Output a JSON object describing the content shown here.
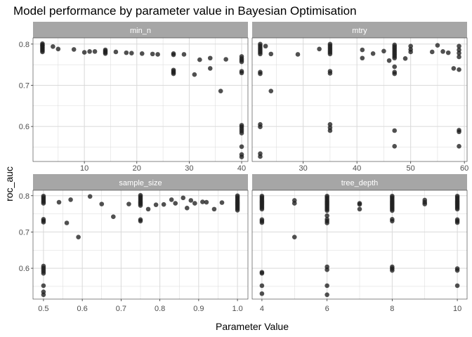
{
  "chart_data": {
    "type": "scatter",
    "title": "Model performance by parameter value in Bayesian Optimisation",
    "xlabel": "Parameter Value",
    "ylabel": "roc_auc",
    "grid": true,
    "legend": "none",
    "shared_y": {
      "range": [
        0.515,
        0.815
      ],
      "ticks": [
        0.6,
        0.7,
        0.8
      ],
      "tick_labels": [
        "0.6",
        "0.7",
        "0.8"
      ]
    },
    "colors": {
      "strip_bg": "#a6a6a6",
      "strip_text": "#ffffff",
      "panel_bg": "#ffffff",
      "panel_border": "#333333",
      "grid": "#d9d9d9",
      "point": "#1f1f1f"
    },
    "panels": [
      {
        "name": "min_n",
        "xlim": [
          0.2,
          41.2
        ],
        "x_ticks": [
          10,
          20,
          30,
          40
        ],
        "x_tick_labels": [
          "10",
          "20",
          "30",
          "40"
        ],
        "points": [
          [
            2,
            0.801
          ],
          [
            2,
            0.798
          ],
          [
            2,
            0.796
          ],
          [
            2,
            0.793
          ],
          [
            2,
            0.79
          ],
          [
            2,
            0.787
          ],
          [
            2,
            0.784
          ],
          [
            2,
            0.781
          ],
          [
            4,
            0.794
          ],
          [
            5,
            0.788
          ],
          [
            8,
            0.787
          ],
          [
            10,
            0.78
          ],
          [
            11,
            0.782
          ],
          [
            12,
            0.782
          ],
          [
            14,
            0.786
          ],
          [
            14,
            0.783
          ],
          [
            14,
            0.78
          ],
          [
            14,
            0.777
          ],
          [
            16,
            0.781
          ],
          [
            18,
            0.779
          ],
          [
            19,
            0.778
          ],
          [
            21,
            0.777
          ],
          [
            23,
            0.776
          ],
          [
            24,
            0.775
          ],
          [
            27,
            0.777
          ],
          [
            27,
            0.774
          ],
          [
            27,
            0.737
          ],
          [
            27,
            0.734
          ],
          [
            27,
            0.731
          ],
          [
            27,
            0.728
          ],
          [
            29,
            0.775
          ],
          [
            31,
            0.726
          ],
          [
            32,
            0.762
          ],
          [
            34,
            0.766
          ],
          [
            34,
            0.741
          ],
          [
            36,
            0.686
          ],
          [
            37,
            0.763
          ],
          [
            40,
            0.77
          ],
          [
            40,
            0.765
          ],
          [
            40,
            0.761
          ],
          [
            40,
            0.757
          ],
          [
            40,
            0.734
          ],
          [
            40,
            0.73
          ],
          [
            40,
            0.603
          ],
          [
            40,
            0.599
          ],
          [
            40,
            0.594
          ],
          [
            40,
            0.589
          ],
          [
            40,
            0.584
          ],
          [
            40,
            0.551
          ],
          [
            40,
            0.532
          ],
          [
            40,
            0.526
          ]
        ]
      },
      {
        "name": "mtry",
        "xlim": [
          20.5,
          60.5
        ],
        "x_ticks": [
          30,
          40,
          50,
          60
        ],
        "x_tick_labels": [
          "30",
          "40",
          "50",
          "60"
        ],
        "points": [
          [
            22,
            0.8
          ],
          [
            22,
            0.796
          ],
          [
            22,
            0.792
          ],
          [
            22,
            0.788
          ],
          [
            22,
            0.784
          ],
          [
            22,
            0.78
          ],
          [
            22,
            0.776
          ],
          [
            22,
            0.732
          ],
          [
            22,
            0.728
          ],
          [
            22,
            0.605
          ],
          [
            22,
            0.599
          ],
          [
            22,
            0.534
          ],
          [
            22,
            0.527
          ],
          [
            23,
            0.795
          ],
          [
            24,
            0.776
          ],
          [
            24,
            0.686
          ],
          [
            29,
            0.775
          ],
          [
            33,
            0.788
          ],
          [
            35,
            0.8
          ],
          [
            35,
            0.796
          ],
          [
            35,
            0.792
          ],
          [
            35,
            0.788
          ],
          [
            35,
            0.784
          ],
          [
            35,
            0.78
          ],
          [
            35,
            0.776
          ],
          [
            35,
            0.734
          ],
          [
            35,
            0.729
          ],
          [
            35,
            0.605
          ],
          [
            35,
            0.597
          ],
          [
            35,
            0.59
          ],
          [
            41,
            0.786
          ],
          [
            41,
            0.766
          ],
          [
            43,
            0.777
          ],
          [
            45,
            0.783
          ],
          [
            46,
            0.76
          ],
          [
            47,
            0.798
          ],
          [
            47,
            0.794
          ],
          [
            47,
            0.79
          ],
          [
            47,
            0.786
          ],
          [
            47,
            0.782
          ],
          [
            47,
            0.778
          ],
          [
            47,
            0.774
          ],
          [
            47,
            0.77
          ],
          [
            47,
            0.766
          ],
          [
            47,
            0.745
          ],
          [
            47,
            0.732
          ],
          [
            47,
            0.728
          ],
          [
            47,
            0.59
          ],
          [
            47,
            0.552
          ],
          [
            49,
            0.765
          ],
          [
            50,
            0.795
          ],
          [
            50,
            0.787
          ],
          [
            50,
            0.781
          ],
          [
            54,
            0.781
          ],
          [
            55,
            0.797
          ],
          [
            56,
            0.782
          ],
          [
            57,
            0.779
          ],
          [
            58,
            0.741
          ],
          [
            59,
            0.795
          ],
          [
            59,
            0.786
          ],
          [
            59,
            0.778
          ],
          [
            59,
            0.769
          ],
          [
            59,
            0.738
          ],
          [
            59,
            0.591
          ],
          [
            59,
            0.587
          ],
          [
            59,
            0.552
          ]
        ]
      },
      {
        "name": "sample_size",
        "xlim": [
          0.473,
          1.027
        ],
        "x_ticks": [
          0.5,
          0.6,
          0.7,
          0.8,
          0.9,
          1.0
        ],
        "x_tick_labels": [
          "0.5",
          "0.6",
          "0.7",
          "0.8",
          "0.9",
          "1.0"
        ],
        "points": [
          [
            0.5,
            0.799
          ],
          [
            0.5,
            0.795
          ],
          [
            0.5,
            0.791
          ],
          [
            0.5,
            0.787
          ],
          [
            0.5,
            0.783
          ],
          [
            0.5,
            0.779
          ],
          [
            0.5,
            0.735
          ],
          [
            0.5,
            0.731
          ],
          [
            0.5,
            0.727
          ],
          [
            0.5,
            0.606
          ],
          [
            0.5,
            0.601
          ],
          [
            0.5,
            0.596
          ],
          [
            0.5,
            0.591
          ],
          [
            0.5,
            0.586
          ],
          [
            0.5,
            0.552
          ],
          [
            0.5,
            0.535
          ],
          [
            0.5,
            0.527
          ],
          [
            0.54,
            0.782
          ],
          [
            0.56,
            0.725
          ],
          [
            0.57,
            0.789
          ],
          [
            0.59,
            0.686
          ],
          [
            0.62,
            0.798
          ],
          [
            0.65,
            0.777
          ],
          [
            0.68,
            0.742
          ],
          [
            0.72,
            0.777
          ],
          [
            0.75,
            0.801
          ],
          [
            0.75,
            0.797
          ],
          [
            0.75,
            0.793
          ],
          [
            0.75,
            0.789
          ],
          [
            0.75,
            0.785
          ],
          [
            0.75,
            0.781
          ],
          [
            0.75,
            0.777
          ],
          [
            0.75,
            0.773
          ],
          [
            0.75,
            0.734
          ],
          [
            0.75,
            0.73
          ],
          [
            0.77,
            0.763
          ],
          [
            0.79,
            0.775
          ],
          [
            0.81,
            0.776
          ],
          [
            0.83,
            0.789
          ],
          [
            0.84,
            0.779
          ],
          [
            0.86,
            0.794
          ],
          [
            0.87,
            0.766
          ],
          [
            0.88,
            0.787
          ],
          [
            0.89,
            0.779
          ],
          [
            0.91,
            0.783
          ],
          [
            0.92,
            0.782
          ],
          [
            0.94,
            0.763
          ],
          [
            0.96,
            0.781
          ],
          [
            1.0,
            0.8
          ],
          [
            1.0,
            0.796
          ],
          [
            1.0,
            0.792
          ],
          [
            1.0,
            0.788
          ],
          [
            1.0,
            0.784
          ],
          [
            1.0,
            0.78
          ],
          [
            1.0,
            0.776
          ],
          [
            1.0,
            0.772
          ],
          [
            1.0,
            0.768
          ],
          [
            1.0,
            0.764
          ],
          [
            1.0,
            0.76
          ]
        ]
      },
      {
        "name": "tree_depth",
        "xlim": [
          3.7,
          10.3
        ],
        "x_ticks": [
          4,
          6,
          8,
          10
        ],
        "x_tick_labels": [
          "4",
          "6",
          "8",
          "10"
        ],
        "points": [
          [
            4,
            0.799
          ],
          [
            4,
            0.795
          ],
          [
            4,
            0.791
          ],
          [
            4,
            0.787
          ],
          [
            4,
            0.783
          ],
          [
            4,
            0.779
          ],
          [
            4,
            0.775
          ],
          [
            4,
            0.771
          ],
          [
            4,
            0.767
          ],
          [
            4,
            0.763
          ],
          [
            4,
            0.734
          ],
          [
            4,
            0.73
          ],
          [
            4,
            0.726
          ],
          [
            4,
            0.589
          ],
          [
            4,
            0.586
          ],
          [
            4,
            0.552
          ],
          [
            4,
            0.53
          ],
          [
            5,
            0.787
          ],
          [
            5,
            0.779
          ],
          [
            5,
            0.686
          ],
          [
            6,
            0.799
          ],
          [
            6,
            0.795
          ],
          [
            6,
            0.791
          ],
          [
            6,
            0.787
          ],
          [
            6,
            0.783
          ],
          [
            6,
            0.779
          ],
          [
            6,
            0.775
          ],
          [
            6,
            0.771
          ],
          [
            6,
            0.767
          ],
          [
            6,
            0.763
          ],
          [
            6,
            0.759
          ],
          [
            6,
            0.745
          ],
          [
            6,
            0.735
          ],
          [
            6,
            0.73
          ],
          [
            6,
            0.725
          ],
          [
            6,
            0.604
          ],
          [
            6,
            0.596
          ],
          [
            6,
            0.552
          ],
          [
            6,
            0.527
          ],
          [
            7,
            0.779
          ],
          [
            7,
            0.776
          ],
          [
            7,
            0.763
          ],
          [
            8,
            0.799
          ],
          [
            8,
            0.795
          ],
          [
            8,
            0.791
          ],
          [
            8,
            0.787
          ],
          [
            8,
            0.783
          ],
          [
            8,
            0.779
          ],
          [
            8,
            0.775
          ],
          [
            8,
            0.771
          ],
          [
            8,
            0.767
          ],
          [
            8,
            0.763
          ],
          [
            8,
            0.759
          ],
          [
            8,
            0.735
          ],
          [
            8,
            0.73
          ],
          [
            8,
            0.604
          ],
          [
            8,
            0.599
          ],
          [
            8,
            0.594
          ],
          [
            9,
            0.788
          ],
          [
            9,
            0.782
          ],
          [
            9,
            0.777
          ],
          [
            10,
            0.799
          ],
          [
            10,
            0.795
          ],
          [
            10,
            0.791
          ],
          [
            10,
            0.787
          ],
          [
            10,
            0.783
          ],
          [
            10,
            0.779
          ],
          [
            10,
            0.775
          ],
          [
            10,
            0.771
          ],
          [
            10,
            0.767
          ],
          [
            10,
            0.763
          ],
          [
            10,
            0.734
          ],
          [
            10,
            0.73
          ],
          [
            10,
            0.726
          ],
          [
            10,
            0.599
          ],
          [
            10,
            0.594
          ],
          [
            10,
            0.552
          ]
        ]
      }
    ]
  }
}
